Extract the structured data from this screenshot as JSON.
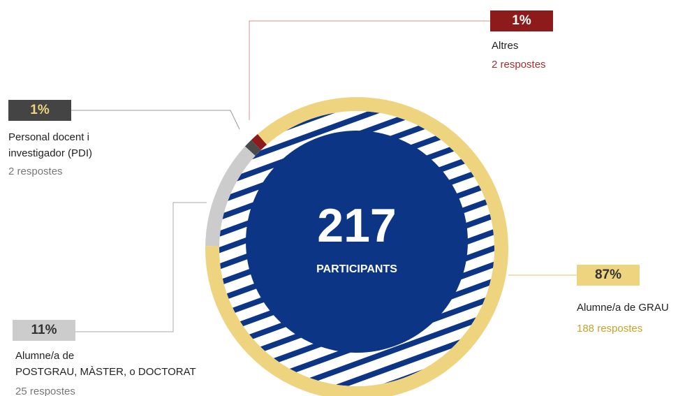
{
  "chart_data": {
    "type": "donut",
    "center_value": 217,
    "center_label": "PARTICIPANTS",
    "categories": [
      "Alumne/a de\nPOSTGRAU, MÀSTER, o DOCTORAT",
      "Personal docent i\ninvestigador (PDI)",
      "Altres",
      "Alumne/a de GRAU"
    ],
    "values": [
      25,
      2,
      2,
      188
    ],
    "value_labels": [
      "25 respostes",
      "2 respostes",
      "2 respostes",
      "188 respostes"
    ],
    "percents": [
      11,
      1,
      1,
      87
    ],
    "percent_labels": [
      "11%",
      "1%",
      "1%",
      "87%"
    ],
    "colors": [
      "#cccccc",
      "#4a4a4a",
      "#8e1b1b",
      "#efd47f"
    ]
  }
}
